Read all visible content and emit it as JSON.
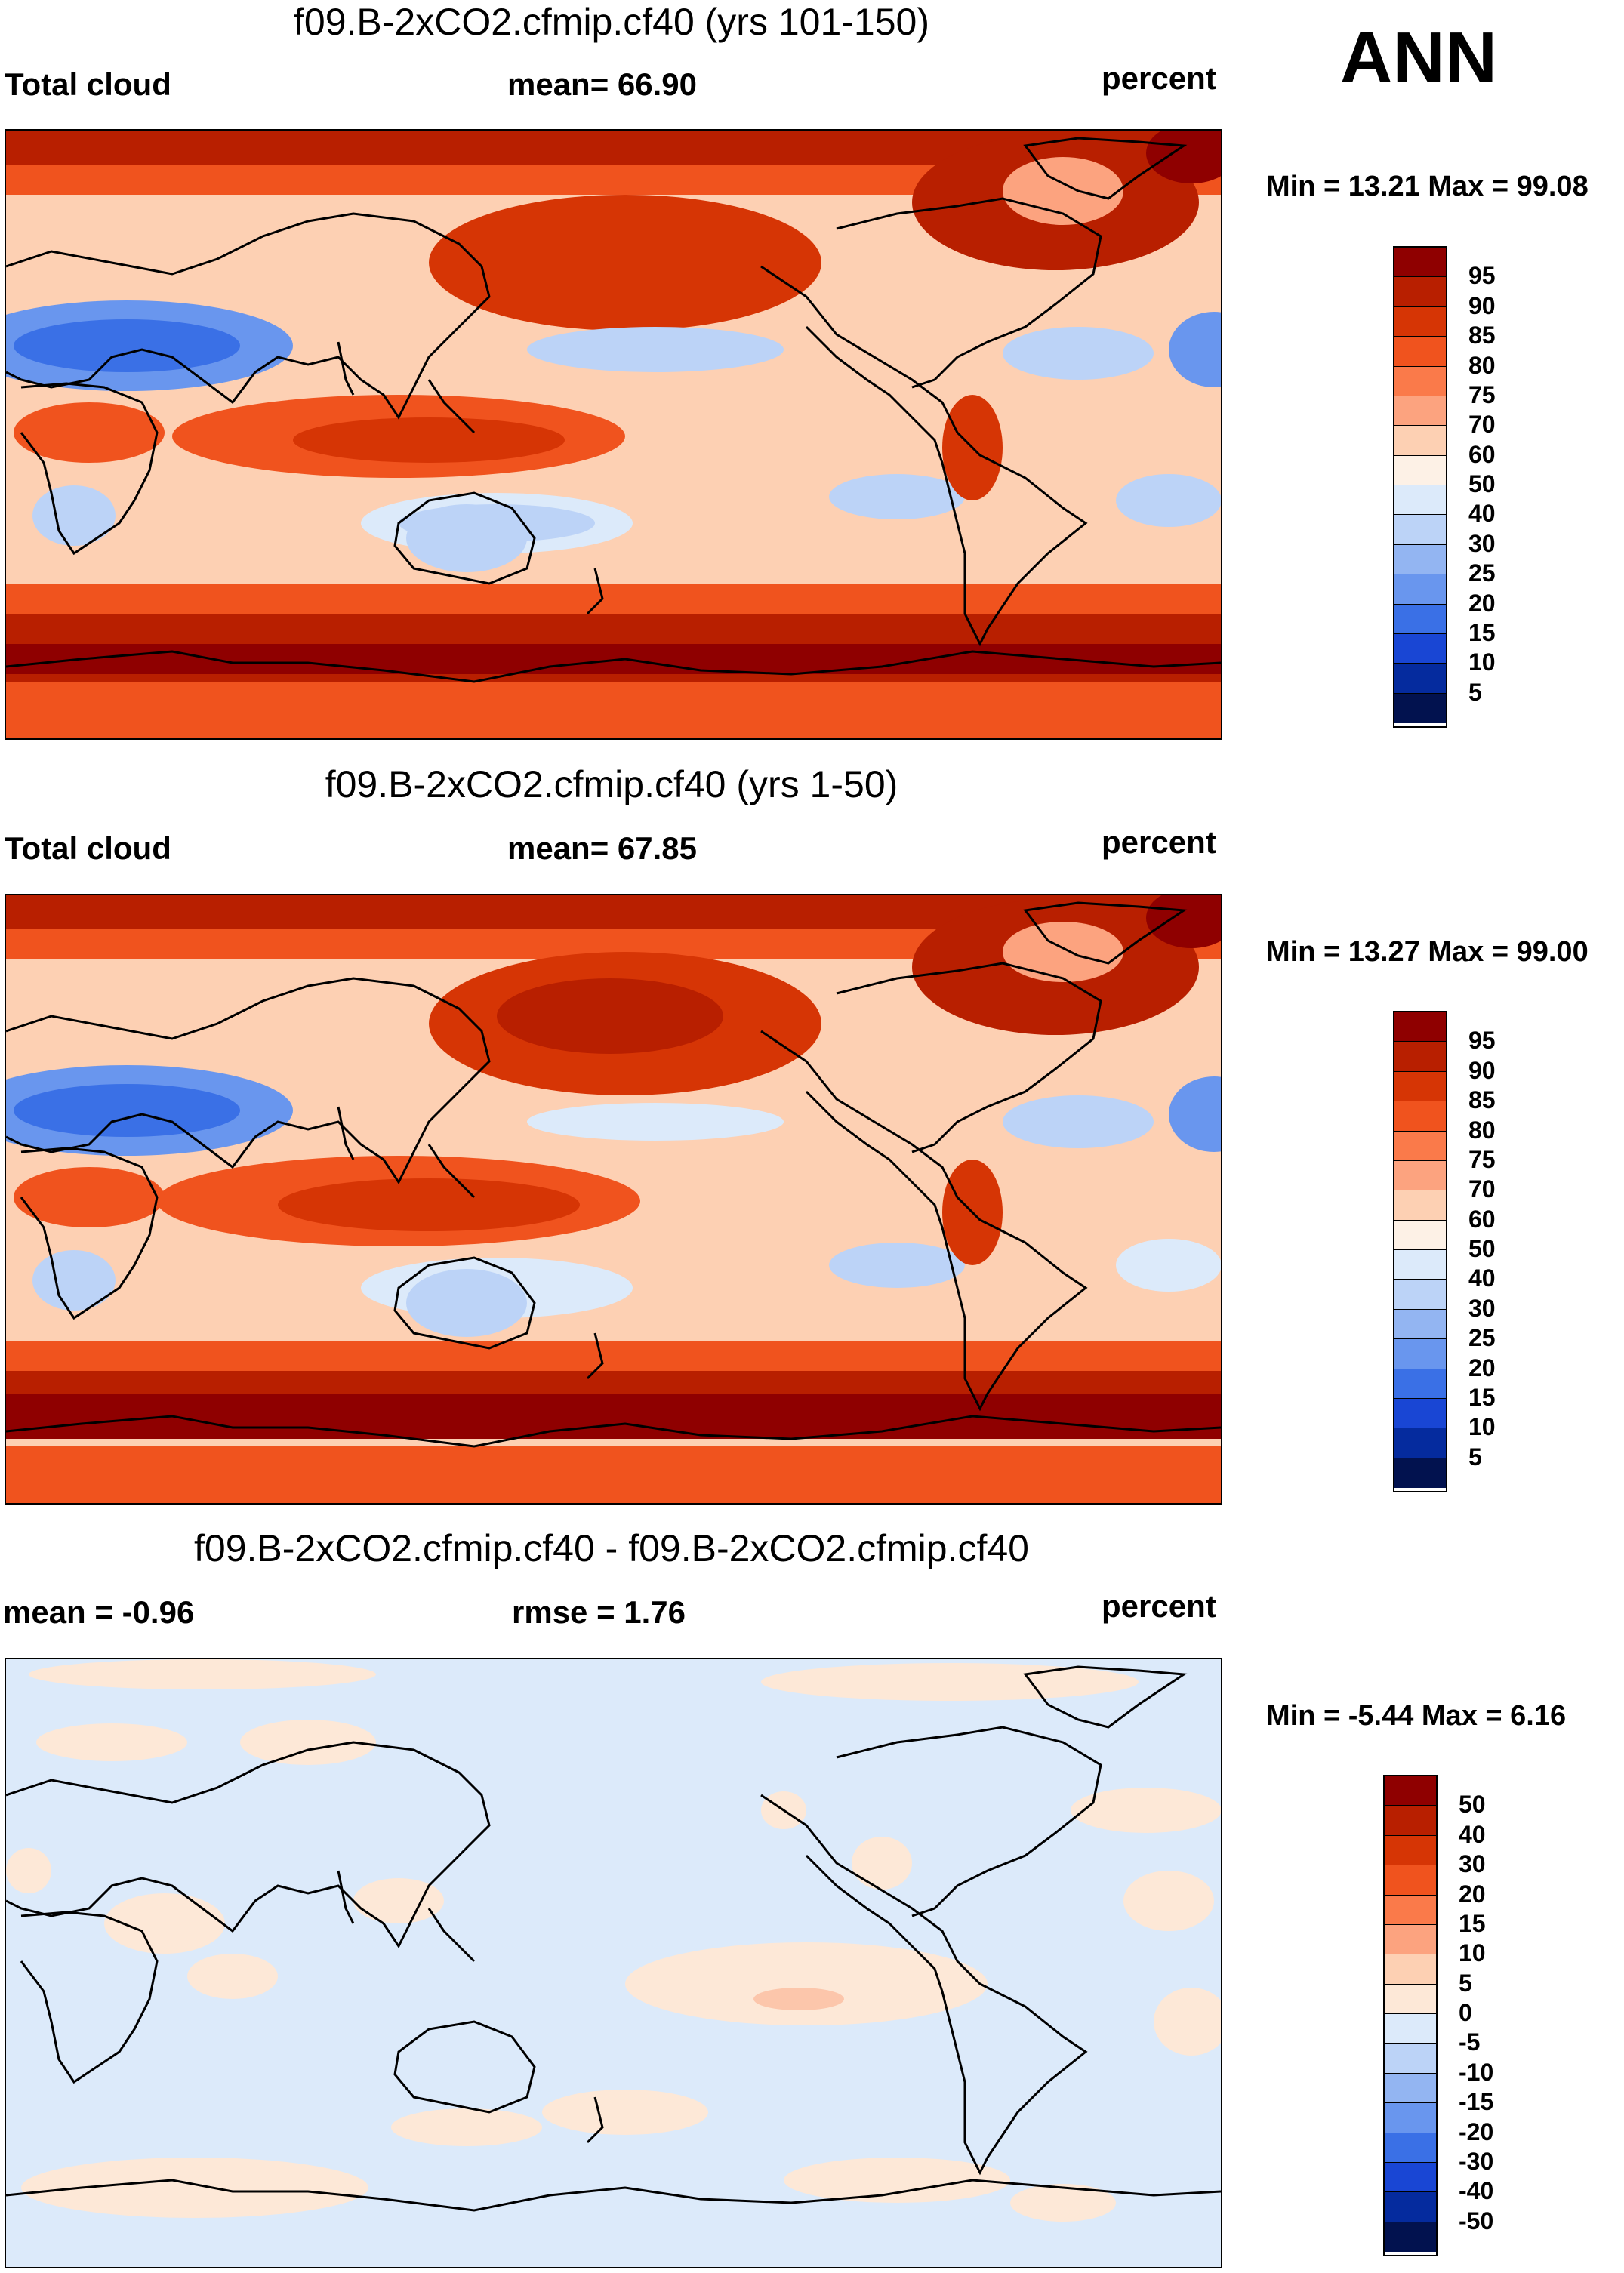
{
  "season": "ANN",
  "colors": {
    "abs_palette": [
      "#8f0000",
      "#b81f00",
      "#d63505",
      "#f0531e",
      "#fa7a4a",
      "#fca37f",
      "#fdd0b3",
      "#fdf1e6",
      "#dceafa",
      "#bcd3f7",
      "#93b5f2",
      "#6996ee",
      "#3a70e6",
      "#1946d4",
      "#052b9e",
      "#02124f"
    ],
    "diff_palette": [
      "#8f0000",
      "#b81f00",
      "#d63505",
      "#f0531e",
      "#fa7a4a",
      "#fca37f",
      "#fdd0b3",
      "#fde8d7",
      "#dceafa",
      "#bcd3f7",
      "#93b5f2",
      "#6996ee",
      "#3a70e6",
      "#1946d4",
      "#052b9e",
      "#02124f"
    ],
    "coast": "#000000"
  },
  "panels": [
    {
      "title": "f09.B-2xCO2.cfmip.cf40 (yrs 101-150)",
      "left_label": "Total cloud",
      "center_label": "mean=  66.90",
      "units": "percent",
      "minmax": "Min =  13.21 Max =  99.08",
      "colorbar_ticks": [
        "95",
        "90",
        "85",
        "80",
        "75",
        "70",
        "60",
        "50",
        "40",
        "30",
        "25",
        "20",
        "15",
        "10",
        "5"
      ]
    },
    {
      "title": "f09.B-2xCO2.cfmip.cf40 (yrs 1-50)",
      "left_label": "Total cloud",
      "center_label": "mean=  67.85",
      "units": "percent",
      "minmax": "Min =  13.27 Max =  99.00",
      "colorbar_ticks": [
        "95",
        "90",
        "85",
        "80",
        "75",
        "70",
        "60",
        "50",
        "40",
        "30",
        "25",
        "20",
        "15",
        "10",
        "5"
      ]
    },
    {
      "title": "f09.B-2xCO2.cfmip.cf40 - f09.B-2xCO2.cfmip.cf40",
      "left_label": "mean =  -0.96",
      "center_label": "rmse =   1.76",
      "units": "percent",
      "minmax": "Min =  -5.44 Max =   6.16",
      "colorbar_ticks": [
        "50",
        "40",
        "30",
        "20",
        "15",
        "10",
        "5",
        "0",
        "-5",
        "-10",
        "-15",
        "-20",
        "-30",
        "-40",
        "-50"
      ]
    }
  ]
}
